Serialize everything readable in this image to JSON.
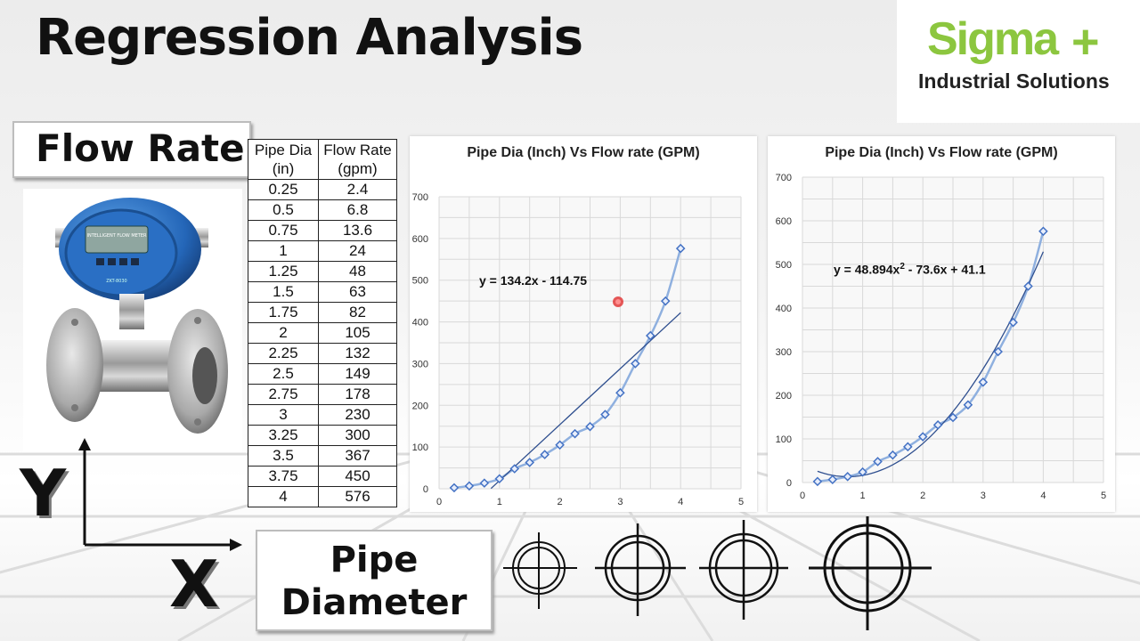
{
  "slide_title": "Regression Analysis",
  "logo": {
    "name": "Sigma",
    "plus": "+",
    "subtitle": "Industrial Solutions",
    "color": "#8cc63f"
  },
  "y_variable_label": "Flow Rate",
  "x_variable_label_line1": "Pipe",
  "x_variable_label_line2": "Diameter",
  "y_axis_letter": "Y",
  "x_axis_letter": "X",
  "meter_display": {
    "text1": "INTELLIGENT FLOW METER",
    "text2": "ZKT-8030"
  },
  "table": {
    "headers": [
      [
        "Pipe Dia",
        "(in)"
      ],
      [
        "Flow Rate",
        "(gpm)"
      ]
    ],
    "rows": [
      [
        "0.25",
        "2.4"
      ],
      [
        "0.5",
        "6.8"
      ],
      [
        "0.75",
        "13.6"
      ],
      [
        "1",
        "24"
      ],
      [
        "1.25",
        "48"
      ],
      [
        "1.5",
        "63"
      ],
      [
        "1.75",
        "82"
      ],
      [
        "2",
        "105"
      ],
      [
        "2.25",
        "132"
      ],
      [
        "2.5",
        "149"
      ],
      [
        "2.75",
        "178"
      ],
      [
        "3",
        "230"
      ],
      [
        "3.25",
        "300"
      ],
      [
        "3.5",
        "367"
      ],
      [
        "3.75",
        "450"
      ],
      [
        "4",
        "576"
      ]
    ]
  },
  "chart_data": [
    {
      "type": "scatter",
      "title": "Pipe Dia (Inch) Vs Flow rate (GPM)",
      "x": [
        0.25,
        0.5,
        0.75,
        1,
        1.25,
        1.5,
        1.75,
        2,
        2.25,
        2.5,
        2.75,
        3,
        3.25,
        3.5,
        3.75,
        4
      ],
      "y": [
        2.4,
        6.8,
        13.6,
        24,
        48,
        63,
        82,
        105,
        132,
        149,
        178,
        230,
        300,
        367,
        450,
        576
      ],
      "trendline": {
        "kind": "linear",
        "slope": 134.2,
        "intercept": -114.75,
        "x_from": 0.86,
        "x_to": 4
      },
      "equation": "y = 134.2x - 114.75",
      "xlim": [
        0,
        5
      ],
      "ylim": [
        0,
        700
      ],
      "xticks": [
        0,
        1,
        2,
        3,
        4,
        5
      ],
      "yticks": [
        0,
        100,
        200,
        300,
        400,
        500,
        600,
        700
      ],
      "grid": true,
      "line_color": "#4472c4",
      "trend_color": "#2f4f8f"
    },
    {
      "type": "scatter",
      "title": "Pipe Dia (Inch) Vs Flow rate (GPM)",
      "x": [
        0.25,
        0.5,
        0.75,
        1,
        1.25,
        1.5,
        1.75,
        2,
        2.25,
        2.5,
        2.75,
        3,
        3.25,
        3.5,
        3.75,
        4
      ],
      "y": [
        2.4,
        6.8,
        13.6,
        24,
        48,
        63,
        82,
        105,
        132,
        149,
        178,
        230,
        300,
        367,
        450,
        576
      ],
      "trendline": {
        "kind": "polynomial",
        "a": 48.894,
        "b": -73.6,
        "c": 41.1,
        "x_from": 0.25,
        "x_to": 4
      },
      "equation": "y = 48.894x",
      "equation_exp": "2",
      "equation_tail": " - 73.6x + 41.1",
      "xlim": [
        0,
        5
      ],
      "ylim": [
        0,
        700
      ],
      "xticks": [
        0,
        1,
        2,
        3,
        4,
        5
      ],
      "yticks": [
        0,
        100,
        200,
        300,
        400,
        500,
        600,
        700
      ],
      "grid": true,
      "line_color": "#4472c4",
      "trend_color": "#2f4f8f"
    }
  ]
}
